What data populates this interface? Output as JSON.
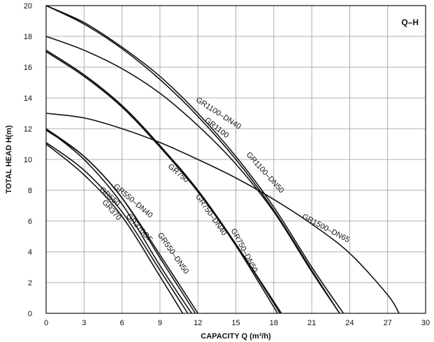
{
  "chart_data": {
    "type": "line",
    "title": "Q–H",
    "xlabel": "CAPACITY  Q (m³/h)",
    "ylabel": "TOTAL HEAD  H(m)",
    "xlim": [
      0,
      30
    ],
    "ylim": [
      0,
      20
    ],
    "xticks": [
      "0",
      "3",
      "6",
      "9",
      "12",
      "15",
      "18",
      "21",
      "24",
      "27",
      "30"
    ],
    "yticks": [
      "0",
      "2",
      "4",
      "6",
      "8",
      "10",
      "12",
      "14",
      "16",
      "18",
      "20"
    ],
    "grid": true,
    "series": [
      {
        "name": "GR370",
        "x": [
          0,
          3,
          6,
          9,
          10.8
        ],
        "y": [
          11.0,
          9.0,
          6.3,
          2.4,
          0
        ]
      },
      {
        "name": "GR550",
        "x": [
          0,
          3,
          6,
          9,
          11.2
        ],
        "y": [
          11.1,
          9.3,
          6.6,
          2.8,
          0
        ]
      },
      {
        "name": "GR370GF",
        "x": [
          0,
          3,
          6,
          9,
          11.5
        ],
        "y": [
          12.0,
          10.0,
          7.1,
          3.1,
          0
        ]
      },
      {
        "name": "GR550-DN40",
        "x": [
          0,
          3,
          6,
          9,
          11.8
        ],
        "y": [
          12.0,
          10.2,
          7.5,
          3.6,
          0
        ]
      },
      {
        "name": "GR550-DN50",
        "x": [
          0,
          3,
          6,
          9,
          12.0
        ],
        "y": [
          11.9,
          10.2,
          7.5,
          3.8,
          0
        ]
      },
      {
        "name": "GR750",
        "x": [
          0,
          3,
          6,
          9,
          12,
          15,
          18.5
        ],
        "y": [
          17.1,
          15.5,
          13.5,
          10.9,
          8.0,
          4.5,
          0
        ]
      },
      {
        "name": "GR750-DN40",
        "x": [
          0,
          3,
          6,
          9,
          12,
          15,
          18.3
        ],
        "y": [
          17.1,
          15.5,
          13.5,
          10.9,
          7.9,
          4.4,
          0
        ]
      },
      {
        "name": "GR750-DN50",
        "x": [
          0,
          3,
          6,
          9,
          12,
          15,
          18.6
        ],
        "y": [
          17.0,
          15.4,
          13.4,
          10.8,
          7.9,
          4.5,
          0
        ]
      },
      {
        "name": "GR1100",
        "x": [
          0,
          3,
          6,
          9,
          12,
          15,
          18,
          21,
          23.2
        ],
        "y": [
          18.0,
          17.1,
          15.9,
          14.3,
          12.2,
          9.7,
          6.6,
          2.7,
          0
        ]
      },
      {
        "name": "GR1100-DN40",
        "x": [
          0,
          3,
          6,
          9,
          12,
          15,
          18,
          21,
          23.2
        ],
        "y": [
          20.0,
          18.8,
          17.2,
          15.2,
          12.8,
          10.0,
          6.7,
          2.8,
          0
        ]
      },
      {
        "name": "GR1100-DN50",
        "x": [
          0,
          3,
          6,
          9,
          12,
          15,
          18,
          21,
          23.5
        ],
        "y": [
          20.0,
          18.9,
          17.3,
          15.4,
          13.0,
          10.2,
          6.9,
          3.0,
          0
        ]
      },
      {
        "name": "GR1500-DN65",
        "x": [
          0,
          3,
          6,
          9,
          12,
          15,
          18,
          21,
          24,
          27,
          27.9
        ],
        "y": [
          13.0,
          12.7,
          12.0,
          11.1,
          10.0,
          8.8,
          7.4,
          5.8,
          3.9,
          1.2,
          0
        ]
      }
    ],
    "labels": [
      {
        "text": "GR1100–DN40",
        "x": 11.8,
        "y": 13.8,
        "angle": 33
      },
      {
        "text": "GR1100",
        "x": 12.5,
        "y": 12.5,
        "angle": 38
      },
      {
        "text": "GR1100–DN50",
        "x": 15.8,
        "y": 10.3,
        "angle": 48
      },
      {
        "text": "GR750",
        "x": 9.6,
        "y": 9.5,
        "angle": 40
      },
      {
        "text": "GR750–DN40",
        "x": 11.8,
        "y": 7.6,
        "angle": 55
      },
      {
        "text": "GR750–DN50",
        "x": 14.6,
        "y": 5.4,
        "angle": 62
      },
      {
        "text": "GR1500–DN65",
        "x": 20.2,
        "y": 6.2,
        "angle": 28
      },
      {
        "text": "GR550–DN40",
        "x": 5.3,
        "y": 8.2,
        "angle": 40
      },
      {
        "text": "GR550",
        "x": 4.2,
        "y": 8.0,
        "angle": 42
      },
      {
        "text": "GR370GF",
        "x": 6.3,
        "y": 6.3,
        "angle": 48
      },
      {
        "text": "GR370",
        "x": 4.4,
        "y": 7.2,
        "angle": 48
      },
      {
        "text": "GR550–DN50",
        "x": 8.8,
        "y": 5.1,
        "angle": 55
      }
    ]
  }
}
